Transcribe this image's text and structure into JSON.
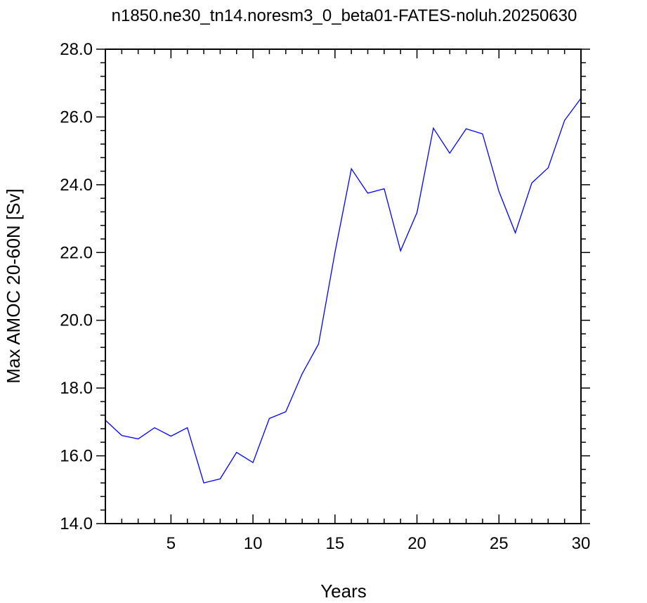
{
  "chart_data": {
    "type": "line",
    "title": "n1850.ne30_tn14.noresm3_0_beta01-FATES-noluh.20250630",
    "xlabel": "Years",
    "ylabel": "Max AMOC 20-60N [Sv]",
    "xlim": [
      1,
      30
    ],
    "ylim": [
      14.0,
      28.0
    ],
    "x_ticks": [
      5,
      10,
      15,
      20,
      25,
      30
    ],
    "x_tick_labels": [
      "5",
      "10",
      "15",
      "20",
      "25",
      "30"
    ],
    "y_ticks": [
      14.0,
      16.0,
      18.0,
      20.0,
      22.0,
      24.0,
      26.0,
      28.0
    ],
    "y_tick_labels": [
      "14.0",
      "16.0",
      "18.0",
      "20.0",
      "22.0",
      "24.0",
      "26.0",
      "28.0"
    ],
    "grid": false,
    "line_color": "#0000ff",
    "series": [
      {
        "x": [
          1,
          2,
          3,
          4,
          5,
          6,
          7,
          8,
          9,
          10,
          11,
          12,
          13,
          14,
          15,
          16,
          17,
          18,
          19,
          20,
          21,
          22,
          23,
          24,
          25,
          26,
          27,
          28,
          29,
          30
        ],
        "values": [
          17.05,
          16.6,
          16.5,
          16.83,
          16.58,
          16.83,
          15.2,
          15.32,
          16.1,
          15.8,
          17.1,
          17.3,
          18.42,
          19.3,
          22.0,
          24.47,
          23.75,
          23.88,
          22.05,
          23.18,
          25.67,
          24.93,
          25.65,
          25.5,
          23.8,
          22.58,
          24.05,
          24.5,
          25.9,
          26.55
        ]
      }
    ]
  }
}
